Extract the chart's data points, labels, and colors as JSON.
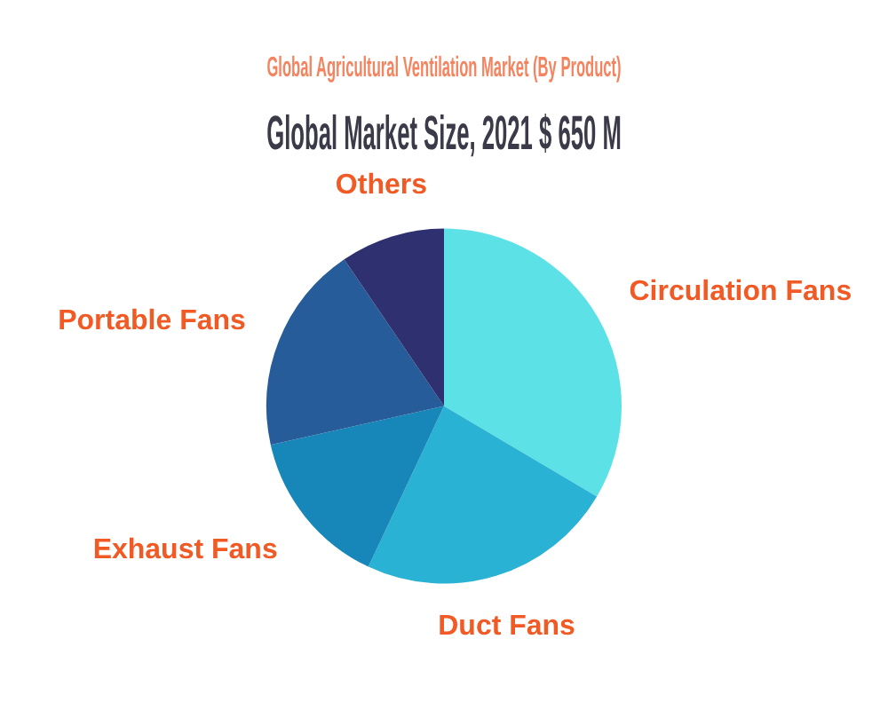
{
  "chart_data": {
    "type": "pie",
    "title": "Global Agricultural Ventilation Market (By Product)",
    "subtitle": "Global Market Size, 2021 $ 650 M",
    "categories": [
      "Circulation Fans",
      "Duct Fans",
      "Exhaust Fans",
      "Portable Fans",
      "Others"
    ],
    "values": [
      33.5,
      23.5,
      14.5,
      19,
      9.5
    ],
    "colors": [
      "#5ce1e6",
      "#29b2d3",
      "#1786b8",
      "#265c99",
      "#2f3070"
    ],
    "legend": false
  }
}
